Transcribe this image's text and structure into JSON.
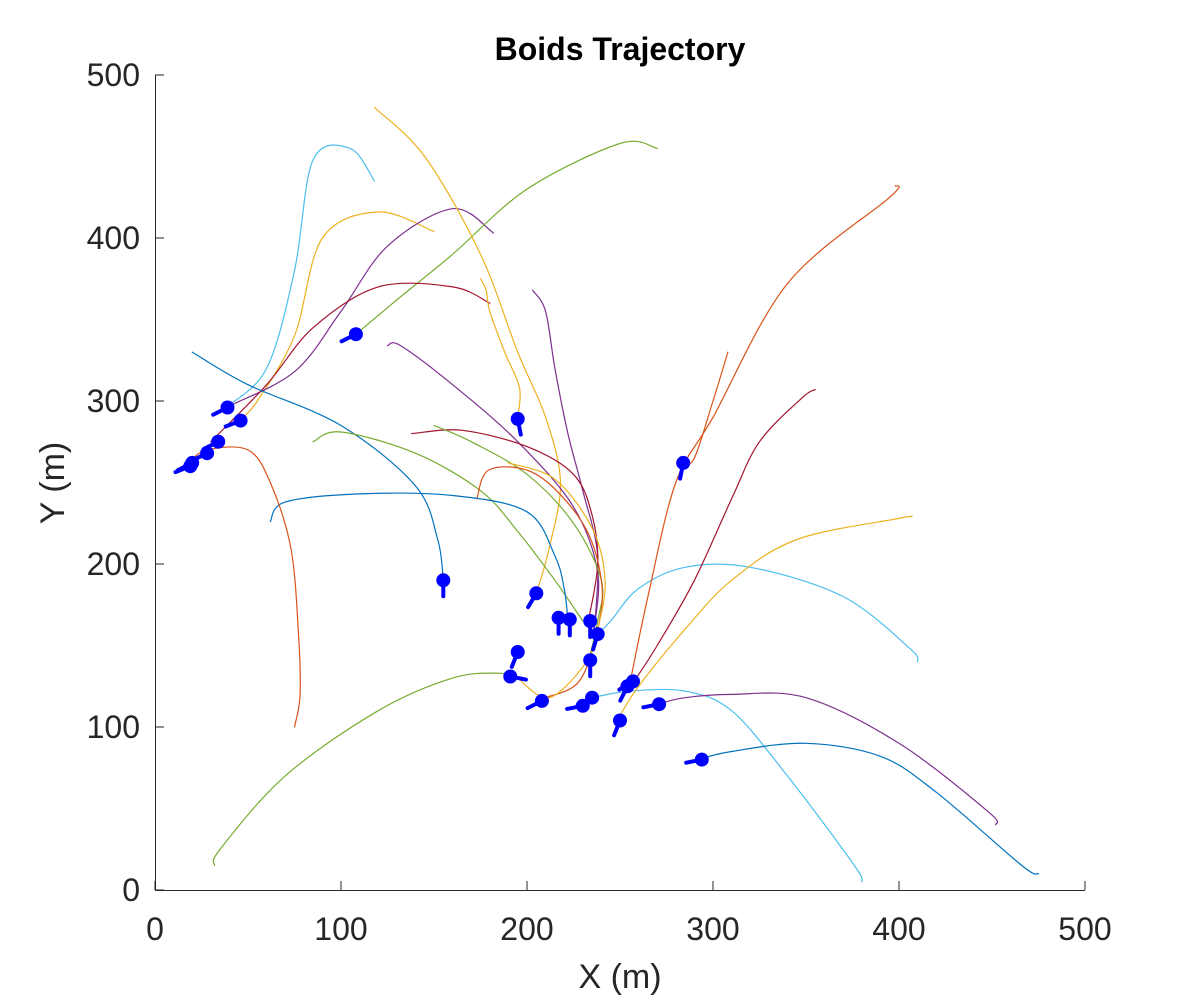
{
  "chart_data": {
    "type": "line",
    "title": "Boids Trajectory",
    "xlabel": "X (m)",
    "ylabel": "Y (m)",
    "xlim": [
      0,
      500
    ],
    "ylim": [
      0,
      500
    ],
    "xticks": [
      "0",
      "100",
      "200",
      "300",
      "400",
      "500"
    ],
    "yticks": [
      "0",
      "100",
      "200",
      "300",
      "400",
      "500"
    ],
    "grid": false,
    "legend": "none",
    "boid_color": "#0000ff",
    "series": [
      {
        "color": "#4DBEEE",
        "points": [
          [
            118,
            435
          ],
          [
            105,
            455
          ],
          [
            85,
            448
          ],
          [
            75,
            380
          ],
          [
            60,
            320
          ],
          [
            38,
            296
          ]
        ]
      },
      {
        "color": "#EDB120",
        "points": [
          [
            150,
            404
          ],
          [
            120,
            416
          ],
          [
            90,
            400
          ],
          [
            75,
            340
          ],
          [
            55,
            300
          ],
          [
            45,
            288
          ]
        ]
      },
      {
        "color": "#7E2F8E",
        "points": [
          [
            182,
            403
          ],
          [
            160,
            418
          ],
          [
            125,
            395
          ],
          [
            100,
            355
          ],
          [
            75,
            318
          ],
          [
            38,
            296
          ]
        ]
      },
      {
        "color": "#77AC30",
        "points": [
          [
            270,
            455
          ],
          [
            250,
            458
          ],
          [
            200,
            430
          ],
          [
            160,
            390
          ],
          [
            130,
            362
          ],
          [
            108,
            341
          ]
        ]
      },
      {
        "color": "#A2142F",
        "points": [
          [
            180,
            360
          ],
          [
            160,
            370
          ],
          [
            120,
            370
          ],
          [
            85,
            345
          ],
          [
            60,
            310
          ],
          [
            30,
            275
          ]
        ]
      },
      {
        "color": "#0072BD",
        "points": [
          [
            20,
            330
          ],
          [
            50,
            310
          ],
          [
            100,
            285
          ],
          [
            140,
            248
          ],
          [
            152,
            215
          ],
          [
            155,
            190
          ]
        ]
      },
      {
        "color": "#EDB120",
        "points": [
          [
            118,
            480
          ],
          [
            145,
            450
          ],
          [
            175,
            390
          ],
          [
            195,
            330
          ],
          [
            210,
            290
          ],
          [
            218,
            250
          ],
          [
            212,
            210
          ],
          [
            205,
            182
          ]
        ]
      },
      {
        "color": "#EDB120",
        "points": [
          [
            175,
            375
          ],
          [
            178,
            368
          ],
          [
            180,
            355
          ],
          [
            188,
            330
          ],
          [
            196,
            308
          ],
          [
            195,
            290
          ]
        ]
      },
      {
        "color": "#7E2F8E",
        "points": [
          [
            203,
            368
          ],
          [
            210,
            355
          ],
          [
            215,
            320
          ],
          [
            222,
            280
          ],
          [
            230,
            245
          ],
          [
            238,
            205
          ],
          [
            236,
            157
          ]
        ]
      },
      {
        "color": "#7E2F8E",
        "points": [
          [
            125,
            334
          ],
          [
            132,
            334
          ],
          [
            160,
            310
          ],
          [
            195,
            275
          ],
          [
            225,
            235
          ],
          [
            238,
            195
          ],
          [
            236,
            160
          ]
        ]
      },
      {
        "color": "#A2142F",
        "points": [
          [
            138,
            280
          ],
          [
            165,
            282
          ],
          [
            200,
            272
          ],
          [
            225,
            255
          ],
          [
            235,
            230
          ],
          [
            238,
            200
          ],
          [
            233,
            165
          ]
        ]
      },
      {
        "color": "#77AC30",
        "points": [
          [
            150,
            285
          ],
          [
            170,
            275
          ],
          [
            200,
            255
          ],
          [
            225,
            225
          ],
          [
            240,
            190
          ],
          [
            238,
            165
          ],
          [
            233,
            140
          ]
        ]
      },
      {
        "color": "#77AC30",
        "points": [
          [
            85,
            275
          ],
          [
            100,
            281
          ],
          [
            140,
            268
          ],
          [
            175,
            245
          ],
          [
            195,
            220
          ],
          [
            215,
            190
          ],
          [
            230,
            165
          ]
        ]
      },
      {
        "color": "#D95319",
        "points": [
          [
            173,
            240
          ],
          [
            180,
            258
          ],
          [
            205,
            255
          ],
          [
            230,
            225
          ],
          [
            240,
            190
          ],
          [
            238,
            160
          ],
          [
            228,
            128
          ],
          [
            210,
            118
          ]
        ]
      },
      {
        "color": "#EDB120",
        "points": [
          [
            190,
            262
          ],
          [
            215,
            252
          ],
          [
            235,
            222
          ],
          [
            242,
            190
          ],
          [
            238,
            160
          ],
          [
            232,
            140
          ],
          [
            212,
            118
          ],
          [
            195,
            130
          ]
        ]
      },
      {
        "color": "#0072BD",
        "points": [
          [
            62,
            226
          ],
          [
            70,
            238
          ],
          [
            110,
            243
          ],
          [
            160,
            242
          ],
          [
            200,
            232
          ],
          [
            215,
            205
          ],
          [
            220,
            185
          ],
          [
            222,
            166
          ]
        ]
      },
      {
        "color": "#D95319",
        "points": [
          [
            75,
            100
          ],
          [
            78,
            120
          ],
          [
            77,
            160
          ],
          [
            73,
            210
          ],
          [
            62,
            250
          ],
          [
            50,
            270
          ],
          [
            28,
            270
          ],
          [
            18,
            262
          ]
        ]
      },
      {
        "color": "#77AC30",
        "points": [
          [
            32,
            15
          ],
          [
            35,
            25
          ],
          [
            70,
            70
          ],
          [
            120,
            110
          ],
          [
            160,
            130
          ],
          [
            185,
            133
          ],
          [
            195,
            130
          ]
        ]
      },
      {
        "color": "#4DBEEE",
        "points": [
          [
            380,
            5
          ],
          [
            376,
            15
          ],
          [
            340,
            70
          ],
          [
            310,
            110
          ],
          [
            285,
            122
          ],
          [
            255,
            122
          ],
          [
            235,
            118
          ]
        ]
      },
      {
        "color": "#7E2F8E",
        "points": [
          [
            452,
            40
          ],
          [
            448,
            48
          ],
          [
            400,
            90
          ],
          [
            350,
            118
          ],
          [
            310,
            120
          ],
          [
            285,
            118
          ],
          [
            270,
            114
          ]
        ]
      },
      {
        "color": "#0072BD",
        "points": [
          [
            475,
            10
          ],
          [
            466,
            15
          ],
          [
            420,
            60
          ],
          [
            390,
            82
          ],
          [
            350,
            90
          ],
          [
            310,
            85
          ],
          [
            292,
            80
          ]
        ]
      },
      {
        "color": "#4DBEEE",
        "points": [
          [
            410,
            140
          ],
          [
            406,
            148
          ],
          [
            370,
            180
          ],
          [
            320,
            198
          ],
          [
            285,
            198
          ],
          [
            260,
            185
          ],
          [
            245,
            165
          ],
          [
            238,
            157
          ]
        ]
      },
      {
        "color": "#EDB120",
        "points": [
          [
            407,
            229
          ],
          [
            400,
            228
          ],
          [
            345,
            215
          ],
          [
            310,
            190
          ],
          [
            285,
            160
          ],
          [
            260,
            125
          ],
          [
            248,
            103
          ]
        ]
      },
      {
        "color": "#D95319",
        "points": [
          [
            398,
            432
          ],
          [
            395,
            425
          ],
          [
            340,
            372
          ],
          [
            300,
            290
          ],
          [
            280,
            250
          ],
          [
            265,
            180
          ],
          [
            255,
            125
          ]
        ]
      },
      {
        "color": "#A2142F",
        "points": [
          [
            355,
            307
          ],
          [
            348,
            302
          ],
          [
            325,
            275
          ],
          [
            310,
            240
          ],
          [
            290,
            190
          ],
          [
            270,
            150
          ],
          [
            257,
            127
          ]
        ]
      },
      {
        "color": "#D95319",
        "points": [
          [
            308,
            330
          ],
          [
            300,
            300
          ],
          [
            290,
            265
          ],
          [
            284,
            262
          ]
        ]
      }
    ],
    "boids": [
      {
        "x": 39,
        "y": 296,
        "heading": [
          -1,
          -0.5
        ]
      },
      {
        "x": 46,
        "y": 288,
        "heading": [
          -1,
          -0.4
        ]
      },
      {
        "x": 34,
        "y": 275,
        "heading": [
          -1,
          -0.5
        ]
      },
      {
        "x": 28,
        "y": 268,
        "heading": [
          -1,
          -0.5
        ]
      },
      {
        "x": 20,
        "y": 262,
        "heading": [
          -1,
          -0.5
        ]
      },
      {
        "x": 19,
        "y": 260,
        "heading": [
          -1,
          -0.4
        ]
      },
      {
        "x": 108,
        "y": 341,
        "heading": [
          -1,
          -0.5
        ]
      },
      {
        "x": 195,
        "y": 289,
        "heading": [
          0.2,
          -1
        ]
      },
      {
        "x": 155,
        "y": 190,
        "heading": [
          0,
          -1
        ]
      },
      {
        "x": 205,
        "y": 182,
        "heading": [
          -0.6,
          -1
        ]
      },
      {
        "x": 217,
        "y": 167,
        "heading": [
          0,
          -1
        ]
      },
      {
        "x": 223,
        "y": 166,
        "heading": [
          0,
          -1
        ]
      },
      {
        "x": 234,
        "y": 165,
        "heading": [
          0,
          -1
        ]
      },
      {
        "x": 238,
        "y": 157,
        "heading": [
          -0.3,
          -1
        ]
      },
      {
        "x": 234,
        "y": 141,
        "heading": [
          0,
          -1
        ]
      },
      {
        "x": 195,
        "y": 146,
        "heading": [
          -0.4,
          -1
        ]
      },
      {
        "x": 191,
        "y": 131,
        "heading": [
          1,
          -0.2
        ]
      },
      {
        "x": 208,
        "y": 116,
        "heading": [
          -1,
          -0.5
        ]
      },
      {
        "x": 230,
        "y": 113,
        "heading": [
          -1,
          -0.2
        ]
      },
      {
        "x": 235,
        "y": 118,
        "heading": [
          -1,
          -0.5
        ]
      },
      {
        "x": 254,
        "y": 125,
        "heading": [
          -0.5,
          -1
        ]
      },
      {
        "x": 257,
        "y": 128,
        "heading": [
          -1,
          -0.6
        ]
      },
      {
        "x": 250,
        "y": 104,
        "heading": [
          -0.4,
          -1
        ]
      },
      {
        "x": 271,
        "y": 114,
        "heading": [
          -1,
          -0.2
        ]
      },
      {
        "x": 284,
        "y": 262,
        "heading": [
          -0.2,
          -1
        ]
      },
      {
        "x": 294,
        "y": 80,
        "heading": [
          -1,
          -0.2
        ]
      }
    ]
  }
}
